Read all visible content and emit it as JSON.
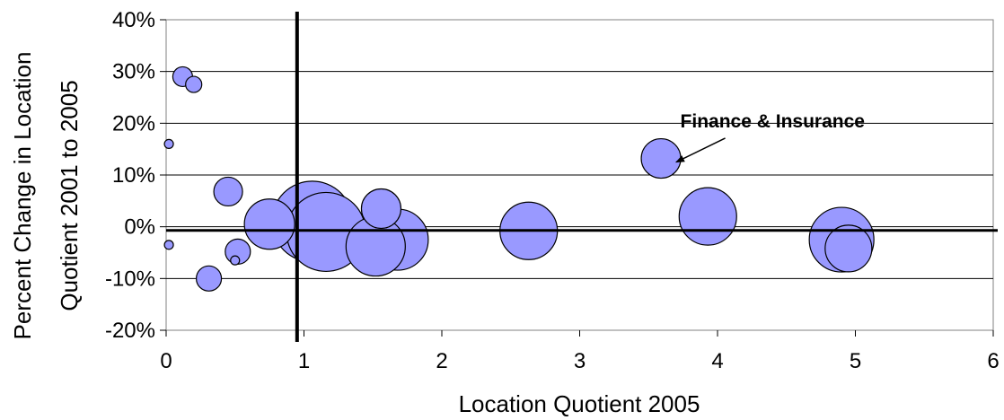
{
  "chart_data": {
    "type": "scatter",
    "title": "",
    "xlabel": "Location Quotient 2005",
    "ylabel_line1": "Percent Change in Location",
    "ylabel_line2": "Quotient 2001 to 2005",
    "xlim": [
      0,
      6
    ],
    "ylim": [
      -20,
      40
    ],
    "x_ticks": [
      0,
      1,
      2,
      3,
      4,
      5,
      6
    ],
    "y_ticks": [
      -20,
      -10,
      0,
      10,
      20,
      30,
      40
    ],
    "y_tick_labels": [
      "-20%",
      "-10%",
      "0%",
      "10%",
      "20%",
      "30%",
      "40%"
    ],
    "grid": "horizontal",
    "reference_lines": {
      "x": 0.95,
      "y": -0.7
    },
    "bubble_color": "#9999ff",
    "bubble_stroke": "#000000",
    "points": [
      {
        "x": 0.12,
        "y": 29.0,
        "r": 11
      },
      {
        "x": 0.2,
        "y": 27.5,
        "r": 9
      },
      {
        "x": 0.02,
        "y": 16.0,
        "r": 5
      },
      {
        "x": 0.02,
        "y": -3.5,
        "r": 5
      },
      {
        "x": 0.45,
        "y": 6.8,
        "r": 16
      },
      {
        "x": 0.5,
        "y": -6.5,
        "r": 5
      },
      {
        "x": 0.52,
        "y": -4.8,
        "r": 14
      },
      {
        "x": 0.31,
        "y": -10.0,
        "r": 14
      },
      {
        "x": 0.75,
        "y": 0.5,
        "r": 28
      },
      {
        "x": 1.06,
        "y": 1.0,
        "r": 45
      },
      {
        "x": 1.16,
        "y": -1.0,
        "r": 44
      },
      {
        "x": 1.56,
        "y": 3.5,
        "r": 22
      },
      {
        "x": 1.52,
        "y": -3.8,
        "r": 33
      },
      {
        "x": 1.68,
        "y": -2.5,
        "r": 34
      },
      {
        "x": 2.63,
        "y": -0.8,
        "r": 32
      },
      {
        "x": 3.59,
        "y": 13.2,
        "r": 22
      },
      {
        "x": 3.93,
        "y": 2.0,
        "r": 32
      },
      {
        "x": 4.95,
        "y": -4.2,
        "r": 26
      },
      {
        "x": 4.9,
        "y": -2.5,
        "r": 36
      }
    ],
    "annotations": [
      {
        "text": "Finance & Insurance",
        "x": 3.73,
        "y": 19.2,
        "points_to": {
          "x": 3.7,
          "y": 17.0
        }
      }
    ]
  }
}
